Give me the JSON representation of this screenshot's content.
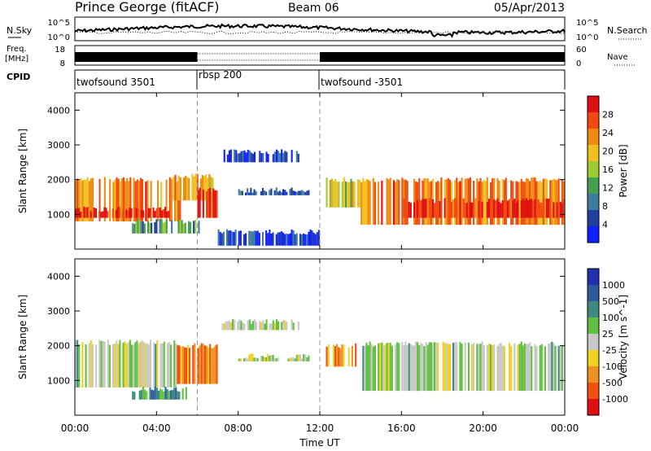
{
  "header": {
    "station": "Prince George (fitACF)",
    "beam": "Beam 06",
    "date": "05/Apr/2013"
  },
  "nsky_panel": {
    "left_label": "N.Sky",
    "left_ticks": [
      "10^5",
      "10^0"
    ],
    "right_label": "N.Search",
    "right_ticks": [
      "10^5",
      "10^0"
    ]
  },
  "freq_panel": {
    "left_label_line1": "Freq.",
    "left_label_line2": "[MHz]",
    "left_ticks": [
      "18",
      "8"
    ],
    "right_label": "Nave",
    "right_ticks": [
      "60",
      "0"
    ]
  },
  "cpid_panel": {
    "label": "CPID",
    "segments": [
      {
        "label": "twofsound 3501",
        "start_hour": 0,
        "end_hour": 6
      },
      {
        "label": "rbsp 200",
        "start_hour": 6,
        "end_hour": 12
      },
      {
        "label": "twofsound -3501",
        "start_hour": 12,
        "end_hour": 24
      }
    ]
  },
  "x_axis": {
    "label": "Time UT",
    "ticks": [
      "00:00",
      "04:00",
      "08:00",
      "12:00",
      "16:00",
      "20:00",
      "00:00"
    ]
  },
  "power_panel": {
    "y_label": "Slant Range [km]",
    "y_ticks": [
      "1000",
      "2000",
      "3000",
      "4000"
    ],
    "colorbar_label": "Power [dB]",
    "colorbar_ticks": [
      "4",
      "8",
      "12",
      "16",
      "20",
      "24",
      "28"
    ],
    "colors": [
      "#1020ff",
      "#203fa0",
      "#3c7c9c",
      "#44a050",
      "#9ccc30",
      "#f0c020",
      "#f08a10",
      "#f04a10",
      "#e01010"
    ]
  },
  "velocity_panel": {
    "y_label": "Slant Range [km]",
    "y_ticks": [
      "1000",
      "2000",
      "3000",
      "4000"
    ],
    "colorbar_label": "Velocity [m s^-1]",
    "colorbar_ticks": [
      "1000",
      "500",
      "100",
      "25",
      "-25",
      "-100",
      "-500",
      "-1000"
    ],
    "colors": [
      "#2030b0",
      "#2e5a9c",
      "#3c8a80",
      "#60c040",
      "#c8c8c8",
      "#f0d020",
      "#f09020",
      "#f05010",
      "#e01010"
    ]
  },
  "chart_data": [
    {
      "type": "heatmap",
      "name": "Power",
      "x_range_hours": [
        0,
        24
      ],
      "ylim": [
        0,
        4500
      ],
      "regions": [
        {
          "t0": 0.0,
          "t1": 5.2,
          "r0": 800,
          "r1": 2000,
          "level": 0.75
        },
        {
          "t0": 0.0,
          "t1": 4.8,
          "r0": 900,
          "r1": 1150,
          "level": 0.95
        },
        {
          "t0": 4.8,
          "t1": 6.8,
          "r0": 1400,
          "r1": 2100,
          "level": 0.7
        },
        {
          "t0": 6.0,
          "t1": 7.0,
          "r0": 900,
          "r1": 1700,
          "level": 0.9
        },
        {
          "t0": 2.8,
          "t1": 6.2,
          "r0": 450,
          "r1": 800,
          "level": 0.35
        },
        {
          "t0": 7.2,
          "t1": 11.0,
          "r0": 2500,
          "r1": 2800,
          "level": 0.15
        },
        {
          "t0": 7.0,
          "t1": 12.0,
          "r0": 100,
          "r1": 500,
          "level": 0.15
        },
        {
          "t0": 8.0,
          "t1": 11.5,
          "r0": 1550,
          "r1": 1700,
          "level": 0.2
        },
        {
          "t0": 12.3,
          "t1": 14.0,
          "r0": 1200,
          "r1": 2000,
          "level": 0.55
        },
        {
          "t0": 14.0,
          "t1": 24.0,
          "r0": 700,
          "r1": 2000,
          "level": 0.75
        },
        {
          "t0": 16.0,
          "t1": 24.0,
          "r0": 900,
          "r1": 1400,
          "level": 0.9
        }
      ]
    },
    {
      "type": "heatmap",
      "name": "Velocity",
      "x_range_hours": [
        0,
        24
      ],
      "ylim": [
        0,
        4500
      ],
      "regions": [
        {
          "t0": 0.0,
          "t1": 5.0,
          "r0": 800,
          "r1": 2100,
          "level": 0.47
        },
        {
          "t0": 5.0,
          "t1": 7.0,
          "r0": 900,
          "r1": 2000,
          "level": 0.75
        },
        {
          "t0": 2.8,
          "t1": 5.5,
          "r0": 450,
          "r1": 750,
          "level": 0.3
        },
        {
          "t0": 7.2,
          "t1": 11.0,
          "r0": 2450,
          "r1": 2700,
          "level": 0.47
        },
        {
          "t0": 8.0,
          "t1": 11.5,
          "r0": 1550,
          "r1": 1700,
          "level": 0.47
        },
        {
          "t0": 12.3,
          "t1": 13.8,
          "r0": 1400,
          "r1": 2000,
          "level": 0.72
        },
        {
          "t0": 14.0,
          "t1": 24.0,
          "r0": 700,
          "r1": 2050,
          "level": 0.47
        }
      ]
    }
  ]
}
